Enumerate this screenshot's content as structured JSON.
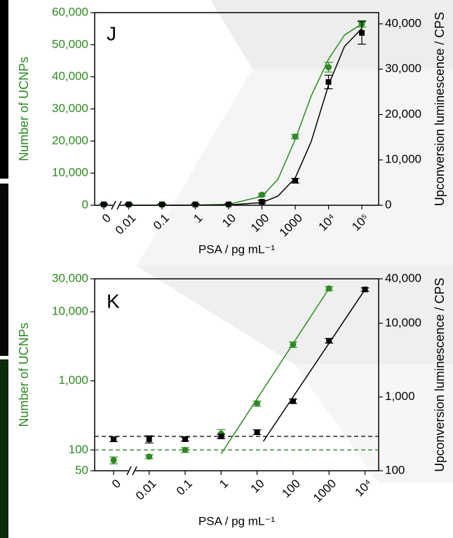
{
  "chart_data": [
    {
      "type": "scatter",
      "panel": "J",
      "x_label": "PSA / pg mL⁻¹",
      "y_label": "Number of UCNPs",
      "y2_label": "Upconversion luminescence / CPS",
      "xscale": "log",
      "yscale": "linear",
      "y_color": "#2d8a22",
      "y2_color": "#000000",
      "xticks": [
        0,
        0.01,
        0.1,
        1,
        10,
        100,
        1000,
        {
          "value": 10000,
          "label": "10⁴"
        },
        {
          "value": 100000,
          "label": "10⁵"
        }
      ],
      "ylim": [
        0,
        60000
      ],
      "yticks": [
        0,
        {
          "value": 10000,
          "label": "10,000"
        },
        {
          "value": 20000,
          "label": "20,000"
        },
        {
          "value": 30000,
          "label": "30,000"
        },
        {
          "value": 40000,
          "label": "40,000"
        },
        {
          "value": 50000,
          "label": "50,000"
        },
        {
          "value": 60000,
          "label": "60,000"
        }
      ],
      "y2lim": [
        0,
        42470
      ],
      "y2ticks": [
        0,
        {
          "value": 10000,
          "label": "10,000"
        },
        {
          "value": 20000,
          "label": "20,000"
        },
        {
          "value": 30000,
          "label": "30,000"
        },
        {
          "value": 40000,
          "label": "40,000"
        }
      ],
      "series": [
        {
          "color": "#2d8a22",
          "marker": "circle",
          "x": [
            0,
            0.01,
            0.1,
            1,
            10,
            100,
            1000,
            10000,
            100000
          ],
          "values": [
            200,
            200,
            200,
            200,
            200,
            3270,
            21380,
            42980,
            56500
          ],
          "errors": [
            150,
            150,
            150,
            150,
            150,
            400,
            700,
            1500,
            1000
          ]
        },
        {
          "color": "#000000",
          "marker": "square",
          "axis": "y2",
          "x": [
            0,
            0.01,
            0.1,
            1,
            10,
            100,
            1000,
            10000,
            100000
          ],
          "values": [
            200,
            200,
            200,
            200,
            200,
            770,
            5400,
            27180,
            38000
          ],
          "errors": [
            150,
            150,
            150,
            150,
            150,
            300,
            500,
            1500,
            2500
          ]
        },
        {
          "color": "#2d8a22",
          "line": "solid",
          "x": [
            0.01,
            0.1,
            1,
            10,
            100,
            300,
            1000,
            3000,
            10000,
            30000,
            100000
          ],
          "values": [
            0,
            0,
            50,
            300,
            2800,
            8000,
            20500,
            34000,
            45500,
            53000,
            56500
          ]
        },
        {
          "color": "#000000",
          "line": "solid",
          "axis": "y2",
          "x": [
            0.01,
            0.1,
            1,
            10,
            100,
            300,
            1000,
            3000,
            10000,
            30000,
            100000
          ],
          "values": [
            0,
            0,
            10,
            60,
            600,
            2000,
            6000,
            14000,
            26500,
            35000,
            39000
          ]
        }
      ]
    },
    {
      "type": "scatter",
      "panel": "K",
      "x_label": "PSA / pg mL⁻¹",
      "y_label": "Number of UCNPs",
      "y2_label": "Upconversion luminescence / CPS",
      "xscale": "log",
      "yscale": "log",
      "y_color": "#2d8a22",
      "y2_color": "#000000",
      "xticks": [
        0,
        0.01,
        0.1,
        1,
        10,
        100,
        1000,
        {
          "value": 10000,
          "label": "10⁴"
        }
      ],
      "ylim": [
        50,
        30000
      ],
      "yticks": [
        50,
        100,
        {
          "value": 1000,
          "label": "1,000"
        },
        {
          "value": 10000,
          "label": "10,000"
        },
        {
          "value": 30000,
          "label": "30,000"
        }
      ],
      "y2lim": [
        100,
        40000
      ],
      "y2ticks": [
        100,
        {
          "value": 1000,
          "label": "1,000"
        },
        {
          "value": 10000,
          "label": "10,000"
        },
        {
          "value": 40000,
          "label": "40,000"
        }
      ],
      "series": [
        {
          "color": "#2d8a22",
          "marker": "circle",
          "x": [
            0,
            0.01,
            0.1,
            1,
            10,
            100,
            1000
          ],
          "values": [
            71,
            80,
            100,
            172,
            470,
            3350,
            21700
          ],
          "errors": [
            8,
            5,
            8,
            25,
            40,
            300,
            1500
          ]
        },
        {
          "color": "#000000",
          "marker": "square",
          "axis": "y2",
          "x": [
            0,
            0.01,
            0.1,
            1,
            10,
            100,
            1000,
            10000
          ],
          "values": [
            268,
            268,
            268,
            293,
            334,
            877,
            5780,
            28650
          ],
          "errors": [
            20,
            30,
            15,
            20,
            25,
            60,
            400,
            1500
          ]
        },
        {
          "color": "#2d8a22",
          "line": "solid",
          "x": [
            1,
            1000
          ],
          "values": [
            87.5,
            21700
          ]
        },
        {
          "color": "#000000",
          "line": "solid",
          "axis": "y2",
          "x": [
            15,
            10000
          ],
          "values": [
            251,
            28650
          ]
        }
      ],
      "hlines": [
        {
          "value": 293,
          "axis": "y2",
          "color": "#000000"
        },
        {
          "value": 100,
          "color": "#2d8a22"
        }
      ]
    }
  ]
}
